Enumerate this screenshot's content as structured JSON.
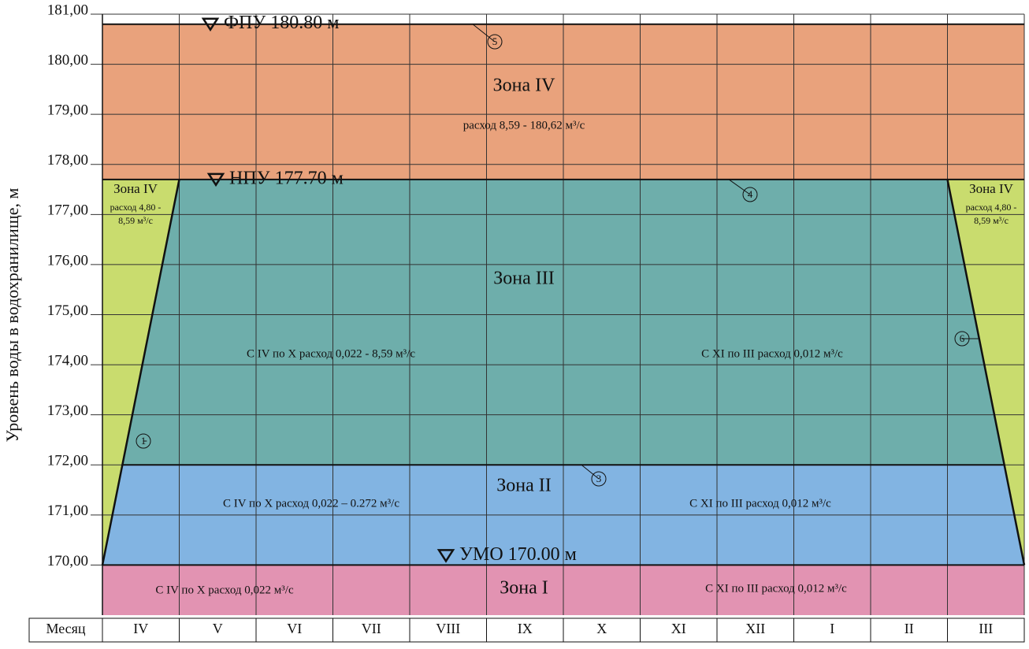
{
  "chart_data": {
    "type": "zones",
    "y_label": "Уровень воды в водохранилище, м",
    "ylim": [
      169,
      181
    ],
    "yticks": [
      {
        "value": 170,
        "label": "170,00"
      },
      {
        "value": 171,
        "label": "171,00"
      },
      {
        "value": 172,
        "label": "172,00"
      },
      {
        "value": 173,
        "label": "173,00"
      },
      {
        "value": 174,
        "label": "174,00"
      },
      {
        "value": 175,
        "label": "175,00"
      },
      {
        "value": 176,
        "label": "176,00"
      },
      {
        "value": 177,
        "label": "177,00"
      },
      {
        "value": 178,
        "label": "178,00"
      },
      {
        "value": 179,
        "label": "179,00"
      },
      {
        "value": 180,
        "label": "180,00"
      },
      {
        "value": 181,
        "label": "181,00"
      }
    ],
    "category_header": "Месяц",
    "categories": [
      "IV",
      "V",
      "VI",
      "VII",
      "VIII",
      "IX",
      "X",
      "XI",
      "XII",
      "I",
      "II",
      "III"
    ],
    "levels": [
      {
        "label": "ФПУ 180.80 м",
        "value": 180.8,
        "marker": "5"
      },
      {
        "label": "НПУ 177.70 м",
        "value": 177.7,
        "marker": "4"
      },
      {
        "value": 172,
        "marker": "3"
      },
      {
        "label": "УМО 170.00 м",
        "value": 170
      }
    ],
    "dispatch_markers": [
      "1",
      "6"
    ],
    "zones": [
      {
        "name": "Зона IV",
        "color": "#e9a27c",
        "notes": [
          "расход 8,59 - 180,62 м³/с"
        ]
      },
      {
        "name": "Зона III",
        "color": "#6eaeab",
        "notes": [
          "С IV по X расход  0,022 - 8,59 м³/с",
          "С XI по III расход  0,012 м³/с"
        ]
      },
      {
        "name": "Зона II",
        "color": "#82b4e2",
        "notes": [
          "С IV по X расход  0,022 – 0.272 м³/с",
          "С XI по III расход  0,012 м³/с"
        ]
      },
      {
        "name": "Зона I",
        "color": "#e293b2",
        "notes": [
          "С IV по X расход  0,022 м³/с",
          "С XI по III расход  0,012 м³/с"
        ]
      }
    ],
    "side_zone": {
      "name": "Зона IV",
      "color": "#c9dc6e",
      "notes": [
        "расход 4,80 -",
        "8,59 м³/с"
      ]
    }
  }
}
